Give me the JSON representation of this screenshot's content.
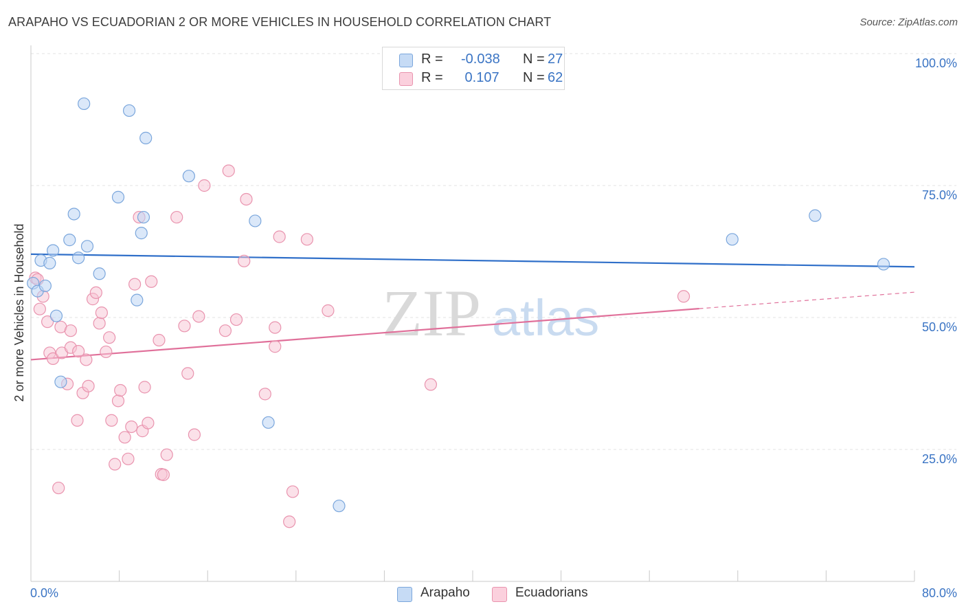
{
  "title": "ARAPAHO VS ECUADORIAN 2 OR MORE VEHICLES IN HOUSEHOLD CORRELATION CHART",
  "source": "Source: ZipAtlas.com",
  "watermark": {
    "zip": "ZIP",
    "atlas": "atlas"
  },
  "legend": {
    "rows": [
      {
        "r_label": "R =",
        "r_value": "-0.038",
        "n_label": "N =",
        "n_value": "27",
        "color": "#a8c8f0"
      },
      {
        "r_label": "R =",
        "r_value": " 0.107",
        "n_label": "N =",
        "n_value": "62",
        "color": "#f6b6c8"
      }
    ]
  },
  "bottom_legend": {
    "arapaho": "Arapaho",
    "ecuadorians": "Ecuadorians"
  },
  "chart_data": {
    "type": "scatter",
    "title": "ARAPAHO VS ECUADORIAN 2 OR MORE VEHICLES IN HOUSEHOLD CORRELATION CHART",
    "xlabel": "",
    "ylabel": "2 or more Vehicles in Household",
    "xlim": [
      0,
      80
    ],
    "ylim": [
      0,
      100
    ],
    "x_tick_labels": [
      "0.0%",
      "80.0%"
    ],
    "y_tick_labels": [
      {
        "value": 100,
        "label": "100.0%"
      },
      {
        "value": 75,
        "label": "75.0%"
      },
      {
        "value": 50,
        "label": "50.0%"
      },
      {
        "value": 25,
        "label": "25.0%"
      }
    ],
    "series": [
      {
        "name": "Arapaho",
        "color": "#a8c8f0",
        "stroke": "#7aa6dc",
        "line_color": "#2f6fc9",
        "trend": {
          "x": [
            0,
            80
          ],
          "y": [
            62.0,
            59.6
          ],
          "dashed_from": null
        },
        "points": [
          [
            0.2,
            56.5
          ],
          [
            0.6,
            55.0
          ],
          [
            0.9,
            60.8
          ],
          [
            1.3,
            56.0
          ],
          [
            1.7,
            60.3
          ],
          [
            2.0,
            62.7
          ],
          [
            2.3,
            50.3
          ],
          [
            2.7,
            37.8
          ],
          [
            3.5,
            64.7
          ],
          [
            3.9,
            69.6
          ],
          [
            4.3,
            61.3
          ],
          [
            5.1,
            63.5
          ],
          [
            4.8,
            90.5
          ],
          [
            6.2,
            58.3
          ],
          [
            7.9,
            72.8
          ],
          [
            8.9,
            89.2
          ],
          [
            9.6,
            53.3
          ],
          [
            10.0,
            66.0
          ],
          [
            10.2,
            69.0
          ],
          [
            10.4,
            84.0
          ],
          [
            14.3,
            76.8
          ],
          [
            20.3,
            68.3
          ],
          [
            21.5,
            30.1
          ],
          [
            27.9,
            14.3
          ],
          [
            63.5,
            64.8
          ],
          [
            71.0,
            69.3
          ],
          [
            77.2,
            60.1
          ]
        ]
      },
      {
        "name": "Ecuadorians",
        "color": "#f6b6c8",
        "stroke": "#e993ae",
        "line_color": "#e0709a",
        "trend": {
          "x": [
            0,
            80
          ],
          "y": [
            42.0,
            54.8
          ],
          "dashed_from": 60.5
        },
        "points": [
          [
            0.4,
            57.5
          ],
          [
            0.8,
            51.6
          ],
          [
            1.1,
            54.0
          ],
          [
            1.5,
            49.2
          ],
          [
            1.7,
            43.3
          ],
          [
            2.0,
            42.2
          ],
          [
            2.5,
            17.7
          ],
          [
            2.7,
            48.2
          ],
          [
            2.8,
            43.3
          ],
          [
            3.3,
            37.4
          ],
          [
            3.6,
            47.5
          ],
          [
            3.6,
            44.3
          ],
          [
            4.2,
            30.5
          ],
          [
            4.3,
            43.6
          ],
          [
            4.7,
            35.7
          ],
          [
            5.0,
            42.0
          ],
          [
            5.2,
            37.0
          ],
          [
            5.6,
            53.5
          ],
          [
            5.9,
            54.7
          ],
          [
            6.2,
            48.9
          ],
          [
            6.4,
            50.9
          ],
          [
            6.8,
            43.5
          ],
          [
            7.1,
            46.2
          ],
          [
            7.3,
            30.5
          ],
          [
            7.6,
            22.2
          ],
          [
            7.9,
            34.2
          ],
          [
            8.1,
            36.2
          ],
          [
            8.5,
            27.3
          ],
          [
            8.8,
            23.2
          ],
          [
            9.1,
            29.3
          ],
          [
            9.4,
            56.3
          ],
          [
            9.8,
            69.0
          ],
          [
            10.1,
            28.5
          ],
          [
            10.3,
            36.8
          ],
          [
            10.6,
            30.0
          ],
          [
            10.9,
            56.8
          ],
          [
            11.6,
            45.7
          ],
          [
            11.8,
            20.3
          ],
          [
            12.0,
            20.2
          ],
          [
            12.3,
            24.0
          ],
          [
            13.2,
            69.0
          ],
          [
            13.9,
            48.4
          ],
          [
            14.2,
            39.4
          ],
          [
            14.8,
            27.8
          ],
          [
            15.2,
            50.2
          ],
          [
            15.7,
            75.0
          ],
          [
            17.6,
            47.5
          ],
          [
            17.9,
            77.8
          ],
          [
            18.6,
            49.6
          ],
          [
            19.3,
            60.7
          ],
          [
            19.5,
            72.4
          ],
          [
            21.2,
            35.5
          ],
          [
            22.1,
            48.1
          ],
          [
            22.1,
            44.5
          ],
          [
            22.5,
            65.3
          ],
          [
            23.4,
            11.3
          ],
          [
            23.7,
            17.0
          ],
          [
            25.0,
            64.8
          ],
          [
            26.9,
            51.3
          ],
          [
            36.2,
            37.3
          ],
          [
            59.1,
            54.0
          ],
          [
            0.6,
            57.2
          ]
        ]
      }
    ]
  }
}
